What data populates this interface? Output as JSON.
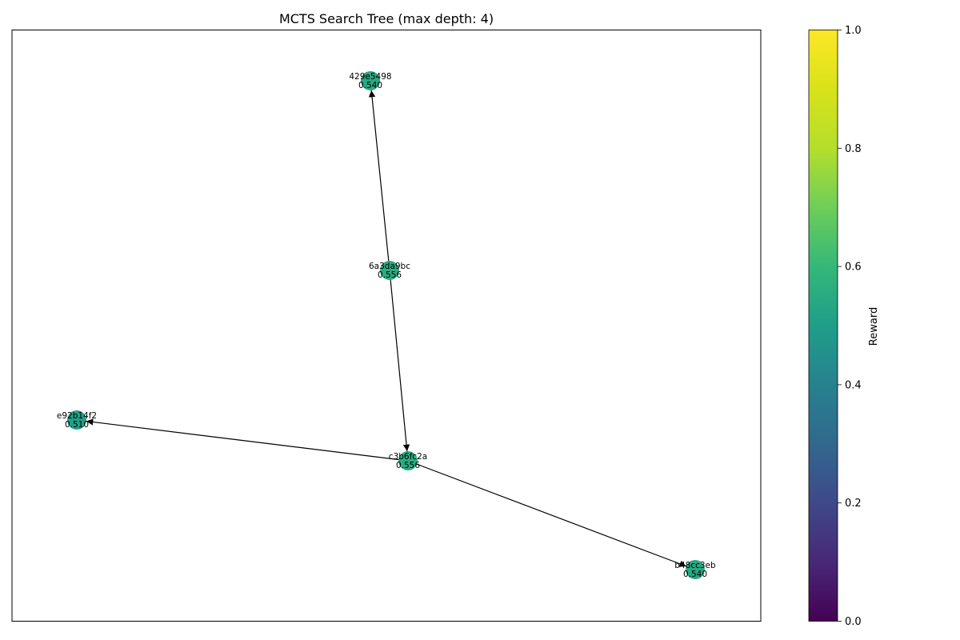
{
  "title": "MCTS Search Tree (max depth: 4)",
  "colorbar": {
    "label": "Reward",
    "min": 0.0,
    "max": 1.0,
    "colormap": "viridis",
    "ticks": [
      "0.0",
      "0.2",
      "0.4",
      "0.6",
      "0.8",
      "1.0"
    ]
  },
  "nodes": [
    {
      "id": "6a3da9bc",
      "reward": "0.556"
    },
    {
      "id": "429e5498",
      "reward": "0.540"
    },
    {
      "id": "c3b6fc2a",
      "reward": "0.556"
    },
    {
      "id": "e92b14f2",
      "reward": "0.510"
    },
    {
      "id": "b48cc3eb",
      "reward": "0.540"
    }
  ],
  "edges": [
    {
      "from": "6a3da9bc",
      "to": "429e5498"
    },
    {
      "from": "6a3da9bc",
      "to": "c3b6fc2a"
    },
    {
      "from": "c3b6fc2a",
      "to": "e92b14f2"
    },
    {
      "from": "c3b6fc2a",
      "to": "b48cc3eb"
    }
  ],
  "colors": {
    "edge": "#000000",
    "axes_frame": "#000000"
  }
}
